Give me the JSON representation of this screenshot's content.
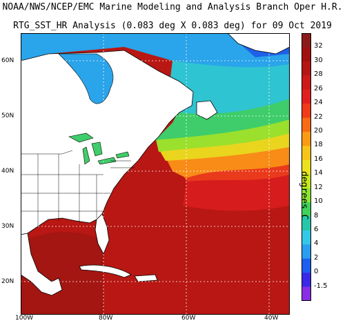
{
  "title_line1": "NOAA/NWS/NCEP/EMC Marine Modeling and Analysis Branch Oper H.R.",
  "title_line2": "RTG_SST_HR Analysis (0.083 deg X 0.083 deg) for 09 Oct 2019",
  "latitude_labels": [
    "60N",
    "50N",
    "40N",
    "30N",
    "20N"
  ],
  "longitude_labels": [
    "100W",
    "80W",
    "60W",
    "40W"
  ],
  "colorbar": {
    "unit_label": "degrees C",
    "ticks": [
      "32",
      "30",
      "28",
      "26",
      "24",
      "22",
      "20",
      "18",
      "16",
      "14",
      "12",
      "10",
      "8",
      "6",
      "4",
      "2",
      "0",
      "-1.5"
    ],
    "colors": [
      "#8b1a1a",
      "#a01010",
      "#b51515",
      "#cc1a1a",
      "#e02020",
      "#f03a1a",
      "#f86a14",
      "#fb9a14",
      "#f7c41a",
      "#ede21e",
      "#c6e91e",
      "#8de632",
      "#3ed25a",
      "#26c7a8",
      "#33c8e6",
      "#2a9ef0",
      "#1e5ef0",
      "#3a28e8",
      "#8a2ee6"
    ]
  },
  "colors": {
    "land": "#ffffff",
    "land_border": "#000000",
    "gulf_sst": "#a41612",
    "gridline": "#ffffff"
  }
}
